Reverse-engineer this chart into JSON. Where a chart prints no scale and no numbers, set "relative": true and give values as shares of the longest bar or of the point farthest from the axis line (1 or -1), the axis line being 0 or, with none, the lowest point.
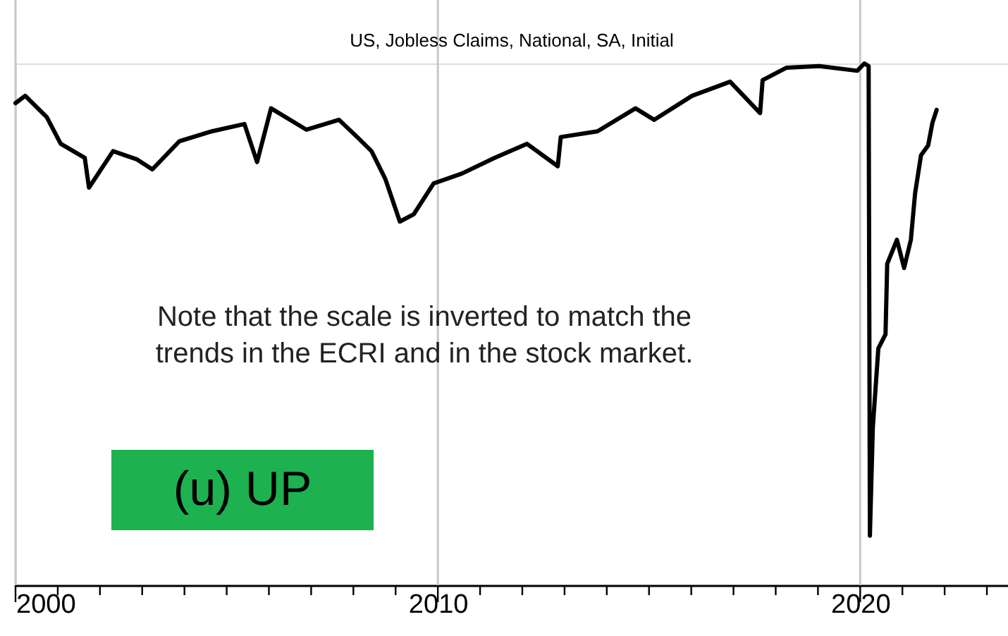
{
  "chart_data": {
    "type": "line",
    "title": "US, Jobless Claims, National, SA, Initial",
    "relative": true,
    "x": [
      2000.0,
      2000.23,
      2000.74,
      2001.07,
      2001.64,
      2001.74,
      2002.31,
      2002.88,
      2003.24,
      2003.88,
      2004.65,
      2005.42,
      2005.72,
      2006.05,
      2006.89,
      2007.66,
      2008.09,
      2008.43,
      2008.76,
      2009.1,
      2009.43,
      2009.9,
      2010.57,
      2011.34,
      2012.11,
      2012.84,
      2012.91,
      2013.78,
      2014.68,
      2015.12,
      2016.02,
      2016.92,
      2017.63,
      2017.69,
      2018.26,
      2019.03,
      2019.93,
      2020.1,
      2020.2,
      2020.23,
      2020.3,
      2020.43,
      2020.6,
      2020.64,
      2020.87,
      2021.04,
      2021.2,
      2021.3,
      2021.44,
      2021.61,
      2021.71,
      2021.81
    ],
    "series": [
      {
        "color": "#000000",
        "values": [
          0.924,
          0.938,
          0.897,
          0.846,
          0.819,
          0.762,
          0.832,
          0.816,
          0.797,
          0.851,
          0.87,
          0.884,
          0.811,
          0.914,
          0.873,
          0.892,
          0.859,
          0.832,
          0.778,
          0.697,
          0.711,
          0.77,
          0.789,
          0.819,
          0.846,
          0.803,
          0.859,
          0.87,
          0.914,
          0.892,
          0.938,
          0.965,
          0.905,
          0.968,
          0.992,
          0.995,
          0.986,
          1.0,
          0.995,
          0.095,
          0.303,
          0.454,
          0.481,
          0.616,
          0.662,
          0.608,
          0.662,
          0.751,
          0.824,
          0.843,
          0.886,
          0.911
        ]
      }
    ],
    "xlim": [
      2000,
      2023.5
    ],
    "xticks": [
      2000,
      {
        "value": 2001,
        "label": null
      },
      {
        "value": 2002,
        "label": null
      },
      {
        "value": 2003,
        "label": null
      },
      {
        "value": 2004,
        "label": null
      },
      {
        "value": 2005,
        "label": null
      },
      {
        "value": 2006,
        "label": null
      },
      {
        "value": 2007,
        "label": null
      },
      {
        "value": 2008,
        "label": null
      },
      {
        "value": 2009,
        "label": null
      },
      2010,
      {
        "value": 2011,
        "label": null
      },
      {
        "value": 2012,
        "label": null
      },
      {
        "value": 2013,
        "label": null
      },
      {
        "value": 2014,
        "label": null
      },
      {
        "value": 2015,
        "label": null
      },
      {
        "value": 2016,
        "label": null
      },
      {
        "value": 2017,
        "label": null
      },
      {
        "value": 2018,
        "label": null
      },
      {
        "value": 2019,
        "label": null
      },
      2020,
      {
        "value": 2021,
        "label": null
      },
      {
        "value": 2022,
        "label": null
      },
      {
        "value": 2023,
        "label": null
      }
    ],
    "grid": "x",
    "legend": false,
    "marker": "none",
    "line_style": "solid",
    "annotations": [
      "Note that the scale is inverted to match the\ntrends in the ECRI and in the stock market.",
      "(u) UP"
    ]
  }
}
